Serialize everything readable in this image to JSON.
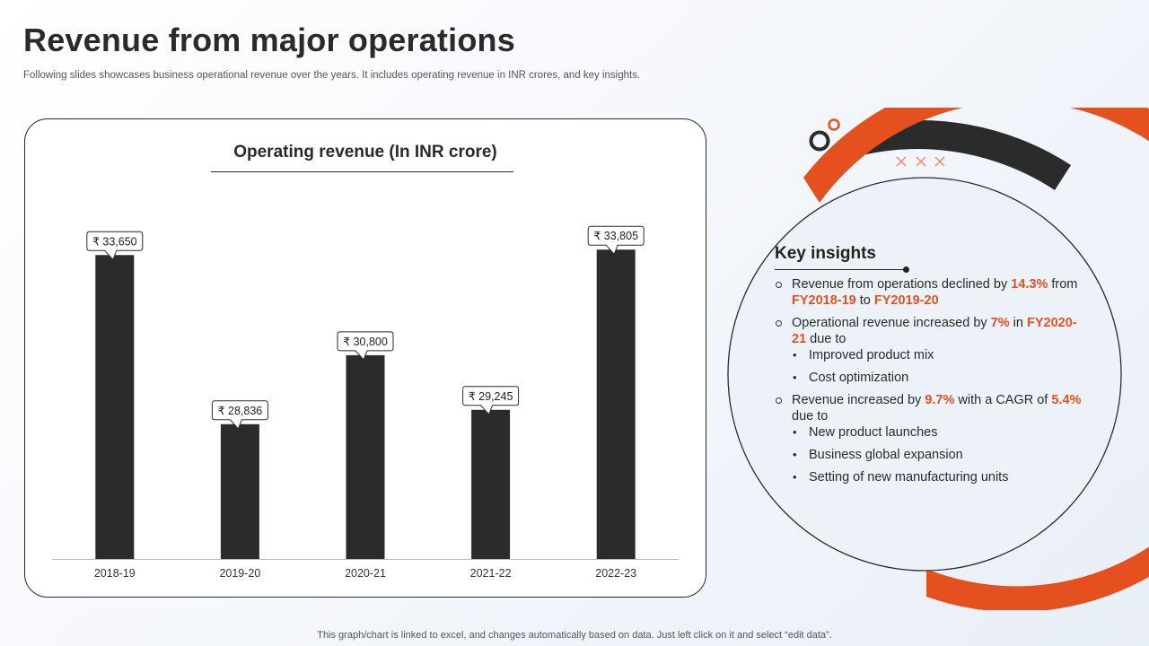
{
  "page": {
    "title": "Revenue from major operations",
    "subtitle": "Following slides showcases business operational revenue over the years. It includes operating revenue in INR crores, and key insights.",
    "footer": "This graph/chart is linked to excel,  and changes automatically based on data. Just left click on it and select “edit data”."
  },
  "colors": {
    "bar": "#2b2b2b",
    "accent": "#e4511e",
    "dark": "#2b2b2b"
  },
  "chart_data": {
    "type": "bar",
    "title": "Operating revenue (In INR crore)",
    "categories": [
      "2018-19",
      "2019-20",
      "2020-21",
      "2021-22",
      "2022-23"
    ],
    "values": [
      33650,
      28836,
      30800,
      29245,
      33805
    ],
    "labels": [
      "₹ 33,650",
      "₹ 28,836",
      "₹ 30,800",
      "₹ 29,245",
      "₹ 33,805"
    ],
    "xlabel": "",
    "ylabel": "",
    "ylim": [
      25000,
      34500
    ]
  },
  "insights": {
    "heading": "Key insights",
    "items": [
      {
        "parts": [
          {
            "text": "Revenue from operations declined by ",
            "hl": false
          },
          {
            "text": "14.3%",
            "hl": true
          },
          {
            "text": " from ",
            "hl": false
          },
          {
            "text": "FY2018-19",
            "hl": true
          },
          {
            "text": " to ",
            "hl": false
          },
          {
            "text": "FY2019-20",
            "hl": true
          }
        ],
        "subs": []
      },
      {
        "parts": [
          {
            "text": "Operational revenue increased by ",
            "hl": false
          },
          {
            "text": "7%",
            "hl": true
          },
          {
            "text": " in ",
            "hl": false
          },
          {
            "text": "FY2020-21",
            "hl": true
          },
          {
            "text": " due to",
            "hl": false
          }
        ],
        "subs": [
          "Improved product mix",
          "Cost optimization"
        ]
      },
      {
        "parts": [
          {
            "text": "Revenue increased by ",
            "hl": false
          },
          {
            "text": "9.7%",
            "hl": true
          },
          {
            "text": " with a CAGR of ",
            "hl": false
          },
          {
            "text": "5.4%",
            "hl": true
          },
          {
            "text": " due to",
            "hl": false
          }
        ],
        "subs": [
          "New product launches",
          "Business global expansion",
          "Setting of new manufacturing units"
        ]
      }
    ]
  }
}
